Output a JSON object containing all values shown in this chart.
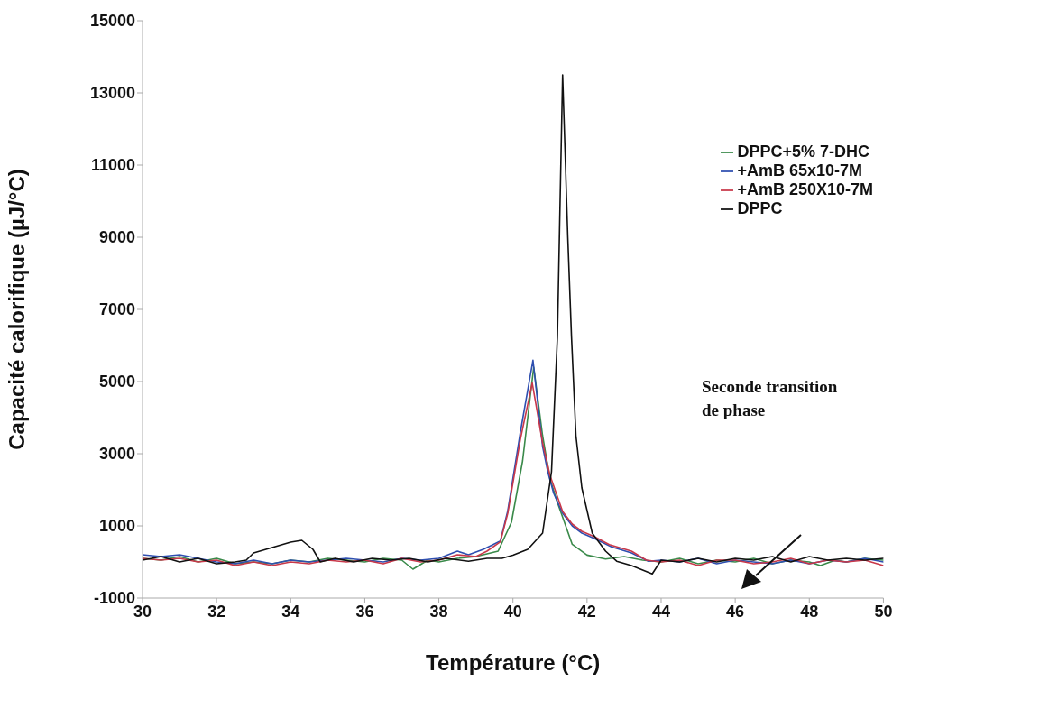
{
  "chart_data": {
    "type": "line",
    "xlabel": "Température (°C)",
    "ylabel": "Capacité calorifique (µJ/°C)",
    "xlim": [
      30,
      50
    ],
    "xticks": [
      30,
      32,
      34,
      36,
      38,
      40,
      42,
      44,
      46,
      48,
      50
    ],
    "ylim": [
      -1000,
      15000
    ],
    "yticks": [
      -1000,
      1000,
      3000,
      5000,
      7000,
      9000,
      11000,
      13000,
      15000
    ],
    "grid": false,
    "legend": "top right",
    "marker": "none",
    "line_style": "solid",
    "annotations": [
      "Seconde transition de phase"
    ],
    "series": [
      {
        "name": "DPPC+5% 7-DHC",
        "color": "#3a8a4a",
        "x": [
          30,
          30.5,
          31,
          31.5,
          32,
          32.5,
          33,
          33.5,
          34,
          34.5,
          35,
          35.5,
          36,
          36.5,
          37,
          37.3,
          37.7,
          38,
          38.5,
          39,
          39.6,
          39.96,
          40.26,
          40.56,
          40.8,
          41,
          41.2,
          41.6,
          42,
          42.5,
          43,
          43.5,
          44,
          44.5,
          45,
          45.5,
          46,
          46.5,
          47,
          47.5,
          48,
          48.3,
          48.7,
          49,
          49.5,
          50
        ],
        "values": [
          100,
          50,
          150,
          0,
          100,
          -50,
          0,
          -50,
          50,
          0,
          100,
          50,
          0,
          100,
          50,
          -200,
          50,
          0,
          100,
          150,
          300,
          1100,
          2800,
          5400,
          3500,
          2300,
          1650,
          490,
          190,
          80,
          150,
          50,
          0,
          100,
          -50,
          50,
          0,
          100,
          -50,
          50,
          0,
          -100,
          50,
          0,
          100,
          50
        ]
      },
      {
        "name": "+AmB 65x10-7M",
        "color": "#2f4fb0",
        "x": [
          30,
          30.5,
          31,
          31.5,
          32,
          32.5,
          33,
          33.5,
          34,
          34.5,
          35,
          35.5,
          36,
          36.5,
          37,
          37.5,
          38,
          38.5,
          38.8,
          39.2,
          39.66,
          39.86,
          40.2,
          40.54,
          40.8,
          40.94,
          41.1,
          41.34,
          41.6,
          41.86,
          42.2,
          42.66,
          43.2,
          43.66,
          44,
          44.5,
          45,
          45.5,
          46,
          46.5,
          47,
          47.5,
          48,
          48.5,
          49,
          49.5,
          50
        ],
        "values": [
          200,
          150,
          200,
          100,
          0,
          -50,
          50,
          -50,
          50,
          0,
          50,
          100,
          50,
          0,
          100,
          50,
          100,
          300,
          200,
          350,
          580,
          1420,
          3600,
          5590,
          3200,
          2500,
          1900,
          1350,
          1000,
          800,
          650,
          420,
          250,
          20,
          50,
          0,
          100,
          -50,
          50,
          0,
          -50,
          50,
          -50,
          50,
          0,
          100,
          0
        ]
      },
      {
        "name": "+AmB 250X10-7M",
        "color": "#c8384a",
        "x": [
          30,
          30.5,
          31,
          31.5,
          32,
          32.5,
          33,
          33.5,
          34,
          34.5,
          35,
          35.5,
          36,
          36.5,
          37,
          37.5,
          38,
          38.5,
          39,
          39.3,
          39.66,
          39.86,
          40.2,
          40.52,
          40.8,
          41,
          41.34,
          41.6,
          41.86,
          42.2,
          42.6,
          43.2,
          43.6,
          44,
          44.5,
          45,
          45.5,
          46,
          46.5,
          47,
          47.5,
          48,
          48.5,
          49,
          49.5,
          50
        ],
        "values": [
          100,
          50,
          100,
          0,
          50,
          -100,
          0,
          -100,
          0,
          -50,
          50,
          0,
          50,
          -50,
          100,
          0,
          50,
          200,
          150,
          300,
          560,
          1350,
          3400,
          4960,
          3300,
          2400,
          1400,
          1050,
          850,
          700,
          480,
          300,
          50,
          0,
          50,
          -100,
          50,
          50,
          -50,
          0,
          100,
          -50,
          50,
          0,
          50,
          -100
        ]
      },
      {
        "name": "DPPC",
        "color": "#111111",
        "x": [
          30,
          30.5,
          31,
          31.5,
          32,
          32.5,
          32.8,
          33,
          33.5,
          34,
          34.3,
          34.6,
          34.8,
          35.2,
          35.7,
          36.2,
          36.7,
          37.2,
          37.7,
          38.2,
          38.8,
          39.3,
          39.7,
          40,
          40.4,
          40.8,
          41.04,
          41.2,
          41.34,
          41.48,
          41.58,
          41.7,
          41.86,
          42.14,
          42.5,
          42.8,
          43.2,
          43.76,
          44,
          44.5,
          45,
          45.5,
          46,
          46.5,
          47,
          47.5,
          48,
          48.5,
          49,
          49.5,
          50
        ],
        "values": [
          50,
          150,
          0,
          100,
          -50,
          0,
          50,
          250,
          400,
          550,
          600,
          350,
          0,
          100,
          0,
          100,
          50,
          100,
          0,
          100,
          20,
          100,
          100,
          190,
          350,
          800,
          2500,
          6240,
          13500,
          9000,
          6240,
          3500,
          2050,
          800,
          300,
          20,
          -100,
          -330,
          50,
          0,
          100,
          0,
          100,
          50,
          150,
          0,
          150,
          50,
          100,
          50,
          100
        ]
      }
    ]
  }
}
